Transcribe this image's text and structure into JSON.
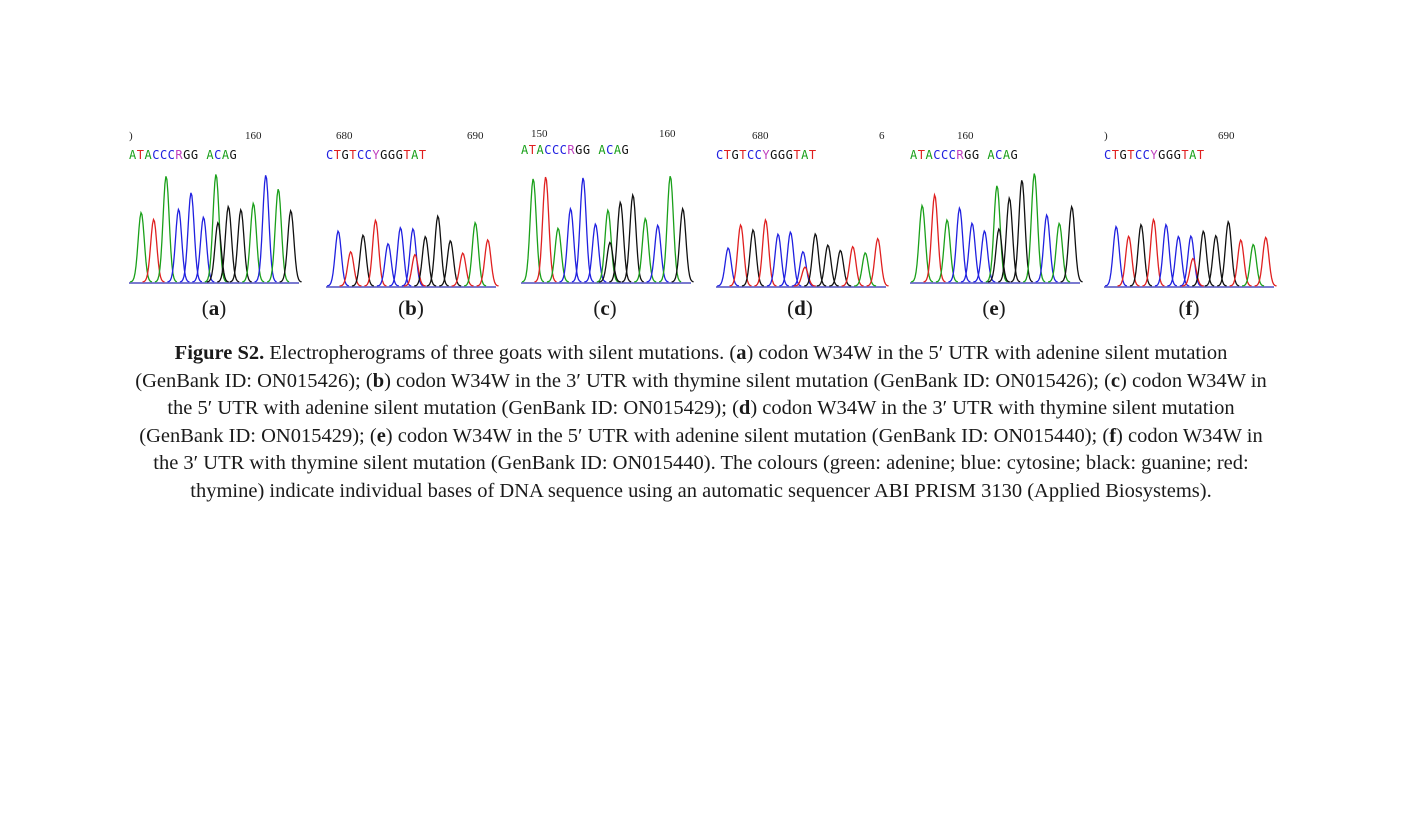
{
  "panels": [
    {
      "id": "a",
      "ticks": [
        ")",
        "160"
      ],
      "sequence": "ATACCCRGG ACAG",
      "label_open": "(",
      "label_letter": "a",
      "label_close": ")"
    },
    {
      "id": "b",
      "ticks": [
        "680",
        "690"
      ],
      "sequence": "CTGTCCYGGGTAT",
      "label_open": "(",
      "label_letter": "b",
      "label_close": ")"
    },
    {
      "id": "c",
      "ticks": [
        "150",
        "160"
      ],
      "sequence": "ATACCCRGG ACAG",
      "label_open": "(",
      "label_letter": "c",
      "label_close": ")"
    },
    {
      "id": "d",
      "ticks": [
        "680",
        "6"
      ],
      "sequence": "CTGTCCYGGGTAT",
      "label_open": "(",
      "label_letter": "d",
      "label_close": ")"
    },
    {
      "id": "e",
      "ticks": [
        "160"
      ],
      "sequence": "ATACCCRGG ACAG",
      "label_open": "(",
      "label_letter": "e",
      "label_close": ")"
    },
    {
      "id": "f",
      "ticks": [
        ")",
        "690"
      ],
      "sequence": "CTGTCCYGGGTAT",
      "label_open": "(",
      "label_letter": "f",
      "label_close": ")"
    }
  ],
  "base_colors": {
    "A": "#1aa01a",
    "C": "#2020e0",
    "G": "#111111",
    "T": "#e02020",
    "R": "#c040c0",
    "Y": "#c040c0"
  },
  "caption": {
    "figure_label": "Figure S2.",
    "text_1": " Electropherograms of three goats with silent mutations. (",
    "a": "a",
    "text_2": ") codon W34W in the 5′ UTR with adenine silent mutation (GenBank ID: ON015426); (",
    "b": "b",
    "text_3": ") codon W34W in the 3′ UTR with thymine silent mutation (GenBank ID: ON015426); (",
    "c": "c",
    "text_4": ") codon W34W in the 5′ UTR with adenine silent mutation (GenBank ID: ON015429); (",
    "d": "d",
    "text_5": ") codon W34W in the 3′ UTR with thymine silent mutation (GenBank ID: ON015429); (",
    "e": "e",
    "text_6": ") codon W34W in the 5′ UTR with adenine silent mutation (GenBank ID: ON015440); (",
    "f": "f",
    "text_7": ") codon W34W in the 3′ UTR with thymine silent mutation (GenBank ID: ON015440). The colours (green: adenine; blue: cytosine; black: guanine; red: thymine) indicate individual bases of DNA sequence using an automatic sequencer ABI PRISM 3130 (Applied Biosystems)."
  }
}
